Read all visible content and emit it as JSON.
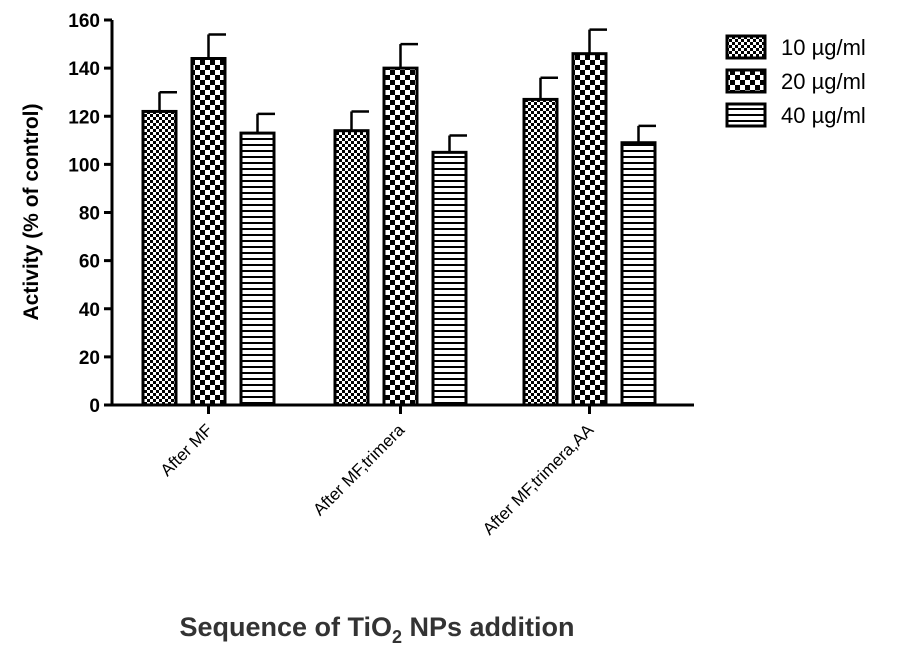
{
  "chart_data": {
    "type": "bar",
    "ylabel": "Activity (% of control)",
    "xlabel_main": "Sequence of TiO",
    "xlabel_sub": "2",
    "xlabel_tail": " NPs addition",
    "categories": [
      "After MF",
      "After MF,trimera",
      "After MF,trimera,AA"
    ],
    "ylim": [
      0,
      160
    ],
    "yticks": [
      0,
      20,
      40,
      60,
      80,
      100,
      120,
      140,
      160
    ],
    "legend_position": "top-right",
    "series": [
      {
        "name": "10 µg/ml",
        "pattern": "fine-checker",
        "values": [
          122,
          114,
          127
        ],
        "errors": [
          8,
          8,
          9
        ]
      },
      {
        "name": "20 µg/ml",
        "pattern": "coarse-checker",
        "values": [
          144,
          140,
          146
        ],
        "errors": [
          10,
          10,
          10
        ]
      },
      {
        "name": "40 µg/ml",
        "pattern": "horizontal-stripes",
        "values": [
          113,
          105,
          109
        ],
        "errors": [
          8,
          7,
          7
        ]
      }
    ]
  }
}
